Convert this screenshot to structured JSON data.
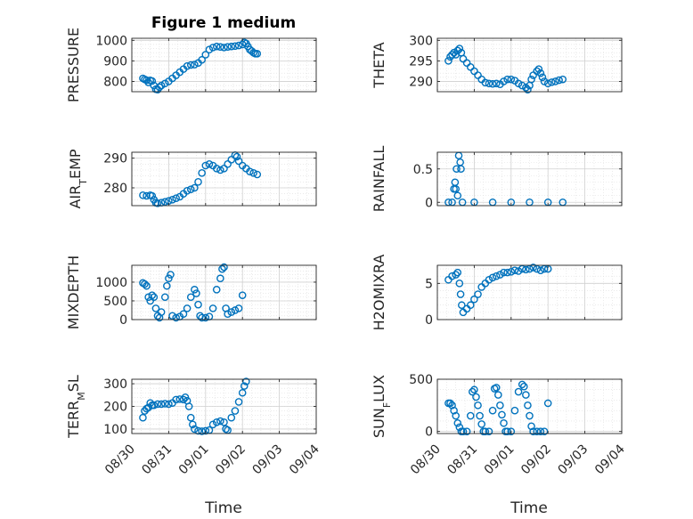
{
  "figure": {
    "title": "Figure 1 medium",
    "xlabel": "Time"
  },
  "chart_data": [
    {
      "type": "scatter",
      "ylabel": "PRESSURE",
      "title": "Figure 1 medium",
      "xlim": [
        "08/30",
        "09/04"
      ],
      "ylim": [
        750,
        1010
      ],
      "yticks": [
        800,
        900,
        1000
      ],
      "grid": true,
      "x_ticks": [
        "08/30",
        "08/31",
        "09/01",
        "09/02",
        "09/03",
        "09/04"
      ],
      "points": [
        [
          0.3,
          815
        ],
        [
          0.35,
          810
        ],
        [
          0.4,
          806
        ],
        [
          0.45,
          795
        ],
        [
          0.5,
          805
        ],
        [
          0.55,
          802
        ],
        [
          0.6,
          780
        ],
        [
          0.65,
          762
        ],
        [
          0.7,
          760
        ],
        [
          0.75,
          772
        ],
        [
          0.8,
          780
        ],
        [
          0.9,
          790
        ],
        [
          1.0,
          800
        ],
        [
          1.1,
          815
        ],
        [
          1.2,
          830
        ],
        [
          1.3,
          845
        ],
        [
          1.4,
          860
        ],
        [
          1.5,
          875
        ],
        [
          1.6,
          880
        ],
        [
          1.7,
          882
        ],
        [
          1.8,
          890
        ],
        [
          1.9,
          905
        ],
        [
          2.0,
          930
        ],
        [
          2.1,
          955
        ],
        [
          2.2,
          965
        ],
        [
          2.3,
          970
        ],
        [
          2.4,
          968
        ],
        [
          2.5,
          965
        ],
        [
          2.6,
          968
        ],
        [
          2.7,
          970
        ],
        [
          2.8,
          972
        ],
        [
          2.9,
          975
        ],
        [
          3.0,
          980
        ],
        [
          3.05,
          990
        ],
        [
          3.1,
          985
        ],
        [
          3.15,
          970
        ],
        [
          3.2,
          955
        ],
        [
          3.25,
          948
        ],
        [
          3.3,
          940
        ],
        [
          3.35,
          935
        ],
        [
          3.4,
          935
        ]
      ]
    },
    {
      "type": "scatter",
      "ylabel": "THETA",
      "xlim": [
        "08/30",
        "09/04"
      ],
      "ylim": [
        287.5,
        300.5
      ],
      "yticks": [
        290,
        295,
        300
      ],
      "grid": true,
      "points": [
        [
          0.3,
          295.0
        ],
        [
          0.35,
          296.0
        ],
        [
          0.4,
          296.5
        ],
        [
          0.45,
          297.0
        ],
        [
          0.5,
          296.5
        ],
        [
          0.55,
          297.5
        ],
        [
          0.6,
          298.0
        ],
        [
          0.65,
          297.0
        ],
        [
          0.7,
          295.5
        ],
        [
          0.8,
          294.5
        ],
        [
          0.9,
          293.5
        ],
        [
          1.0,
          292.5
        ],
        [
          1.1,
          291.5
        ],
        [
          1.2,
          290.5
        ],
        [
          1.3,
          289.7
        ],
        [
          1.4,
          289.5
        ],
        [
          1.5,
          289.4
        ],
        [
          1.6,
          289.5
        ],
        [
          1.7,
          289.3
        ],
        [
          1.8,
          290.0
        ],
        [
          1.9,
          290.5
        ],
        [
          2.0,
          290.5
        ],
        [
          2.1,
          290.2
        ],
        [
          2.2,
          289.5
        ],
        [
          2.3,
          289.0
        ],
        [
          2.4,
          288.5
        ],
        [
          2.45,
          288.0
        ],
        [
          2.5,
          289.0
        ],
        [
          2.55,
          290.5
        ],
        [
          2.6,
          291.5
        ],
        [
          2.7,
          292.5
        ],
        [
          2.75,
          293.0
        ],
        [
          2.8,
          292.0
        ],
        [
          2.85,
          291.0
        ],
        [
          2.9,
          290.0
        ],
        [
          3.0,
          289.5
        ],
        [
          3.1,
          289.8
        ],
        [
          3.2,
          290.0
        ],
        [
          3.3,
          290.3
        ],
        [
          3.4,
          290.5
        ]
      ]
    },
    {
      "type": "scatter",
      "ylabel": "AIR_TEMP",
      "xlim": [
        "08/30",
        "09/04"
      ],
      "ylim": [
        274,
        292
      ],
      "yticks": [
        280,
        290
      ],
      "grid": true,
      "points": [
        [
          0.3,
          277.5
        ],
        [
          0.4,
          277.3
        ],
        [
          0.5,
          277.5
        ],
        [
          0.55,
          277.3
        ],
        [
          0.6,
          276.0
        ],
        [
          0.65,
          275.0
        ],
        [
          0.7,
          274.8
        ],
        [
          0.8,
          275.0
        ],
        [
          0.9,
          275.3
        ],
        [
          1.0,
          275.6
        ],
        [
          1.1,
          276.0
        ],
        [
          1.2,
          276.5
        ],
        [
          1.3,
          277.0
        ],
        [
          1.4,
          278.0
        ],
        [
          1.5,
          279.0
        ],
        [
          1.6,
          279.5
        ],
        [
          1.7,
          280.0
        ],
        [
          1.8,
          282.0
        ],
        [
          1.9,
          285.0
        ],
        [
          2.0,
          287.5
        ],
        [
          2.1,
          288.0
        ],
        [
          2.2,
          287.5
        ],
        [
          2.3,
          286.5
        ],
        [
          2.4,
          286.0
        ],
        [
          2.5,
          286.5
        ],
        [
          2.6,
          288.0
        ],
        [
          2.7,
          289.5
        ],
        [
          2.8,
          291.0
        ],
        [
          2.85,
          290.5
        ],
        [
          2.9,
          289.0
        ],
        [
          3.0,
          287.5
        ],
        [
          3.1,
          286.5
        ],
        [
          3.2,
          285.5
        ],
        [
          3.3,
          285.0
        ],
        [
          3.4,
          284.5
        ]
      ]
    },
    {
      "type": "scatter",
      "ylabel": "RAINFALL",
      "xlim": [
        "08/30",
        "09/04"
      ],
      "ylim": [
        -0.05,
        0.75
      ],
      "yticks": [
        0,
        0.5
      ],
      "grid": true,
      "points": [
        [
          0.3,
          0
        ],
        [
          0.4,
          0
        ],
        [
          0.45,
          0.2
        ],
        [
          0.48,
          0.3
        ],
        [
          0.5,
          0.2
        ],
        [
          0.52,
          0.5
        ],
        [
          0.55,
          0.1
        ],
        [
          0.58,
          0.7
        ],
        [
          0.62,
          0.6
        ],
        [
          0.64,
          0.5
        ],
        [
          0.68,
          0
        ],
        [
          1.0,
          0
        ],
        [
          1.5,
          0
        ],
        [
          2.0,
          0
        ],
        [
          2.5,
          0
        ],
        [
          3.0,
          0
        ],
        [
          3.4,
          0
        ]
      ]
    },
    {
      "type": "scatter",
      "ylabel": "MIXDEPTH",
      "xlim": [
        "08/30",
        "09/04"
      ],
      "ylim": [
        0,
        1450
      ],
      "yticks": [
        0,
        500,
        1000
      ],
      "grid": true,
      "points": [
        [
          0.3,
          980
        ],
        [
          0.35,
          950
        ],
        [
          0.4,
          900
        ],
        [
          0.45,
          600
        ],
        [
          0.5,
          500
        ],
        [
          0.55,
          650
        ],
        [
          0.6,
          600
        ],
        [
          0.65,
          300
        ],
        [
          0.7,
          100
        ],
        [
          0.75,
          50
        ],
        [
          0.8,
          200
        ],
        [
          0.9,
          600
        ],
        [
          0.95,
          900
        ],
        [
          1.0,
          1100
        ],
        [
          1.05,
          1200
        ],
        [
          1.1,
          100
        ],
        [
          1.2,
          50
        ],
        [
          1.3,
          80
        ],
        [
          1.4,
          150
        ],
        [
          1.5,
          300
        ],
        [
          1.6,
          600
        ],
        [
          1.7,
          800
        ],
        [
          1.75,
          700
        ],
        [
          1.8,
          400
        ],
        [
          1.85,
          100
        ],
        [
          1.9,
          50
        ],
        [
          2.0,
          50
        ],
        [
          2.1,
          80
        ],
        [
          2.2,
          300
        ],
        [
          2.3,
          800
        ],
        [
          2.4,
          1100
        ],
        [
          2.45,
          1350
        ],
        [
          2.5,
          1400
        ],
        [
          2.55,
          300
        ],
        [
          2.6,
          150
        ],
        [
          2.7,
          200
        ],
        [
          2.8,
          250
        ],
        [
          2.9,
          300
        ],
        [
          3.0,
          650
        ]
      ]
    },
    {
      "type": "scatter",
      "ylabel": "H2OMIXRA",
      "xlim": [
        "08/30",
        "09/04"
      ],
      "ylim": [
        0,
        7.5
      ],
      "yticks": [
        0,
        5
      ],
      "grid": true,
      "points": [
        [
          0.3,
          5.5
        ],
        [
          0.4,
          6.0
        ],
        [
          0.5,
          6.2
        ],
        [
          0.55,
          6.5
        ],
        [
          0.6,
          5.0
        ],
        [
          0.63,
          3.5
        ],
        [
          0.66,
          2.0
        ],
        [
          0.7,
          1.0
        ],
        [
          0.8,
          1.5
        ],
        [
          0.9,
          2.0
        ],
        [
          1.0,
          2.8
        ],
        [
          1.1,
          3.5
        ],
        [
          1.2,
          4.5
        ],
        [
          1.3,
          5.0
        ],
        [
          1.4,
          5.5
        ],
        [
          1.5,
          5.8
        ],
        [
          1.6,
          6.0
        ],
        [
          1.7,
          6.2
        ],
        [
          1.8,
          6.5
        ],
        [
          1.9,
          6.5
        ],
        [
          2.0,
          6.6
        ],
        [
          2.1,
          6.8
        ],
        [
          2.2,
          6.7
        ],
        [
          2.3,
          7.0
        ],
        [
          2.4,
          6.9
        ],
        [
          2.5,
          7.0
        ],
        [
          2.6,
          7.2
        ],
        [
          2.7,
          7.0
        ],
        [
          2.8,
          6.8
        ],
        [
          2.9,
          7.0
        ],
        [
          3.0,
          7.0
        ]
      ]
    },
    {
      "type": "scatter",
      "ylabel": "TERR_MSL",
      "xlim": [
        "08/30",
        "09/04"
      ],
      "ylim": [
        80,
        320
      ],
      "yticks": [
        100,
        200,
        300
      ],
      "grid": true,
      "points": [
        [
          0.3,
          150
        ],
        [
          0.35,
          180
        ],
        [
          0.4,
          190
        ],
        [
          0.45,
          195
        ],
        [
          0.5,
          215
        ],
        [
          0.55,
          205
        ],
        [
          0.6,
          205
        ],
        [
          0.7,
          210
        ],
        [
          0.8,
          210
        ],
        [
          0.9,
          212
        ],
        [
          1.0,
          210
        ],
        [
          1.1,
          215
        ],
        [
          1.2,
          230
        ],
        [
          1.3,
          232
        ],
        [
          1.4,
          230
        ],
        [
          1.45,
          240
        ],
        [
          1.5,
          225
        ],
        [
          1.55,
          200
        ],
        [
          1.6,
          150
        ],
        [
          1.65,
          120
        ],
        [
          1.7,
          100
        ],
        [
          1.8,
          92
        ],
        [
          1.9,
          90
        ],
        [
          2.0,
          92
        ],
        [
          2.1,
          95
        ],
        [
          2.2,
          120
        ],
        [
          2.3,
          130
        ],
        [
          2.4,
          135
        ],
        [
          2.5,
          130
        ],
        [
          2.55,
          100
        ],
        [
          2.6,
          95
        ],
        [
          2.7,
          150
        ],
        [
          2.8,
          180
        ],
        [
          2.9,
          220
        ],
        [
          3.0,
          260
        ],
        [
          3.05,
          290
        ],
        [
          3.1,
          310
        ]
      ]
    },
    {
      "type": "scatter",
      "ylabel": "SUN_FLUX",
      "xlim": [
        "08/30",
        "09/04"
      ],
      "ylim": [
        -20,
        500
      ],
      "yticks": [
        0,
        500
      ],
      "grid": true,
      "points": [
        [
          0.3,
          270
        ],
        [
          0.35,
          270
        ],
        [
          0.4,
          250
        ],
        [
          0.45,
          200
        ],
        [
          0.5,
          150
        ],
        [
          0.55,
          80
        ],
        [
          0.6,
          40
        ],
        [
          0.65,
          0
        ],
        [
          0.7,
          0
        ],
        [
          0.8,
          0
        ],
        [
          0.9,
          150
        ],
        [
          0.95,
          380
        ],
        [
          1.0,
          400
        ],
        [
          1.05,
          330
        ],
        [
          1.1,
          250
        ],
        [
          1.15,
          150
        ],
        [
          1.2,
          70
        ],
        [
          1.25,
          0
        ],
        [
          1.3,
          0
        ],
        [
          1.4,
          0
        ],
        [
          1.5,
          200
        ],
        [
          1.55,
          410
        ],
        [
          1.6,
          420
        ],
        [
          1.65,
          350
        ],
        [
          1.7,
          250
        ],
        [
          1.75,
          160
        ],
        [
          1.8,
          80
        ],
        [
          1.85,
          0
        ],
        [
          1.9,
          0
        ],
        [
          2.0,
          0
        ],
        [
          2.1,
          200
        ],
        [
          2.2,
          380
        ],
        [
          2.3,
          450
        ],
        [
          2.35,
          430
        ],
        [
          2.4,
          350
        ],
        [
          2.45,
          250
        ],
        [
          2.5,
          150
        ],
        [
          2.55,
          50
        ],
        [
          2.6,
          0
        ],
        [
          2.7,
          0
        ],
        [
          2.8,
          0
        ],
        [
          2.9,
          0
        ],
        [
          3.0,
          270
        ]
      ]
    }
  ]
}
